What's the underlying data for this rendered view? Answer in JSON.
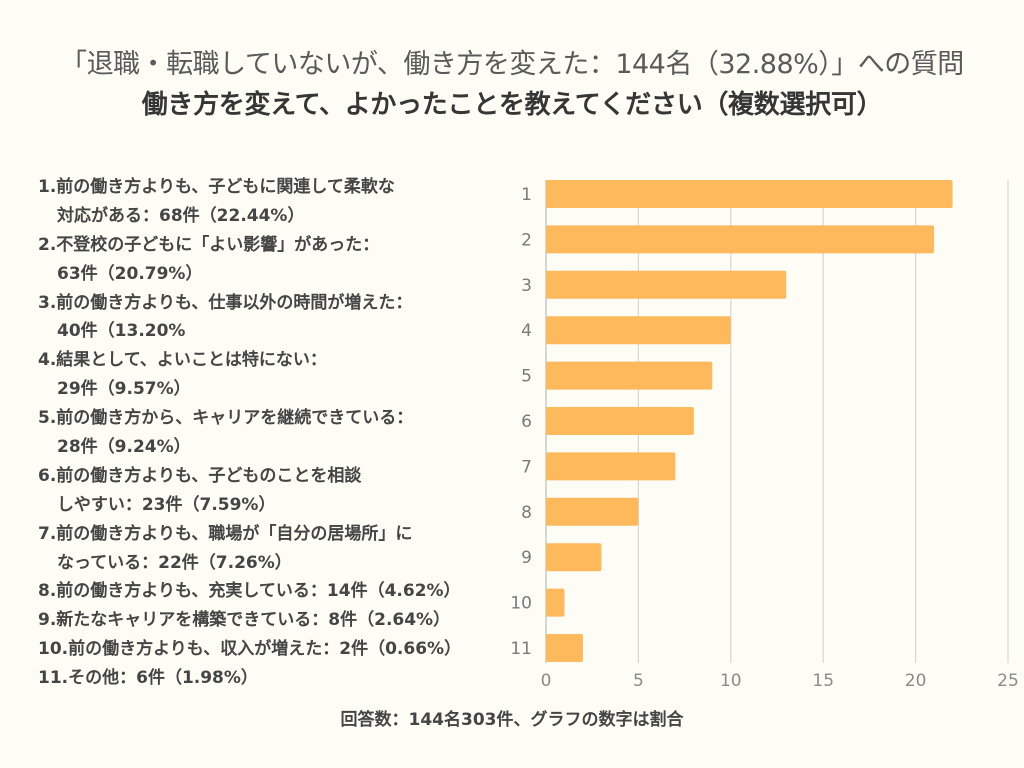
{
  "header": {
    "question": "「退職・転職していないが、働き方を変えた：144名（32.88%）」への質問",
    "title": "働き方を変えて、よかったことを教えてください（複数選択可）"
  },
  "legend": {
    "items": [
      {
        "lines": [
          "1.前の働き方よりも、子どもに関連して柔軟な",
          "対応がある：68件（22.44%）"
        ]
      },
      {
        "lines": [
          "2.不登校の子どもに「よい影響」があった：",
          "63件（20.79%）"
        ]
      },
      {
        "lines": [
          "3.前の働き方よりも、仕事以外の時間が増えた：",
          "40件（13.20%"
        ]
      },
      {
        "lines": [
          "4.結果として、よいことは特にない：",
          "29件（9.57%）"
        ]
      },
      {
        "lines": [
          "5.前の働き方から、キャリアを継続できている：",
          "28件（9.24%）"
        ]
      },
      {
        "lines": [
          "6.前の働き方よりも、子どものことを相談",
          "しやすい：23件（7.59%）"
        ]
      },
      {
        "lines": [
          "7.前の働き方よりも、職場が「自分の居場所」に",
          "なっている：22件（7.26%）"
        ]
      },
      {
        "lines": [
          "8.前の働き方よりも、充実している：14件（4.62%）"
        ]
      },
      {
        "lines": [
          "9.新たなキャリアを構築できている：8件（2.64%）"
        ]
      },
      {
        "lines": [
          "10.前の働き方よりも、収入が増えた：2件（0.66%）"
        ]
      },
      {
        "lines": [
          "11.その他：6件（1.98%）"
        ]
      }
    ]
  },
  "footer": {
    "note": "回答数：144名303件、グラフの数字は割合"
  },
  "colors": {
    "background": "#FDFDF6",
    "bar": "#FDB95B",
    "grid": "#D6D6D3",
    "axis": "#BDBDBA"
  },
  "chart_data": {
    "type": "bar",
    "orientation": "horizontal",
    "title": "働き方を変えて、よかったことを教えてください（複数選択可）",
    "xlabel": "",
    "ylabel": "",
    "categories": [
      "1",
      "2",
      "3",
      "4",
      "5",
      "6",
      "7",
      "8",
      "9",
      "10",
      "11"
    ],
    "values": [
      22,
      21,
      13,
      10,
      9,
      8,
      7,
      5,
      3,
      1,
      2
    ],
    "unit": "%",
    "xlim": [
      0,
      25
    ],
    "xticks": [
      "0",
      "5",
      "10",
      "15",
      "20",
      "25"
    ],
    "grid": true,
    "legend": "none"
  }
}
